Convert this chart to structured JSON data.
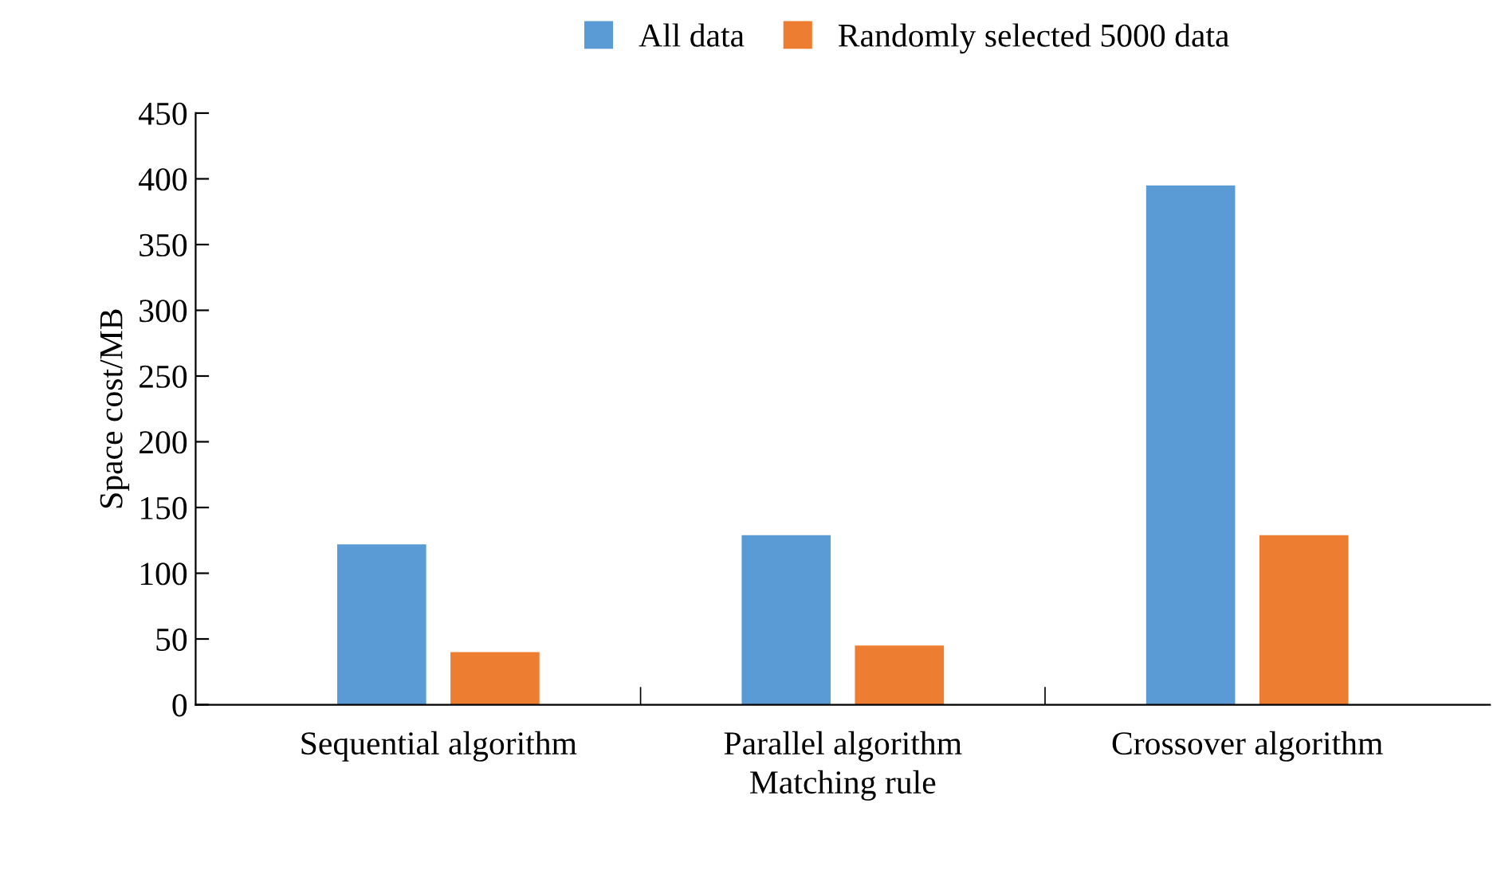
{
  "chart_data": {
    "type": "bar",
    "xlabel": "Matching rule",
    "ylabel": "Space cost/MB",
    "categories": [
      "Sequential algorithm",
      "Parallel algorithm",
      "Crossover algorithm"
    ],
    "series": [
      {
        "name": "All data",
        "color": "#5b9bd5",
        "values": [
          122,
          129,
          395
        ]
      },
      {
        "name": "Randomly selected 5000 data",
        "color": "#ed7d31",
        "values": [
          40,
          45,
          129
        ]
      }
    ],
    "ylim": [
      0,
      450
    ],
    "yticks": [
      0,
      50,
      100,
      150,
      200,
      250,
      300,
      350,
      400,
      450
    ],
    "grid": false,
    "legend": "top"
  }
}
